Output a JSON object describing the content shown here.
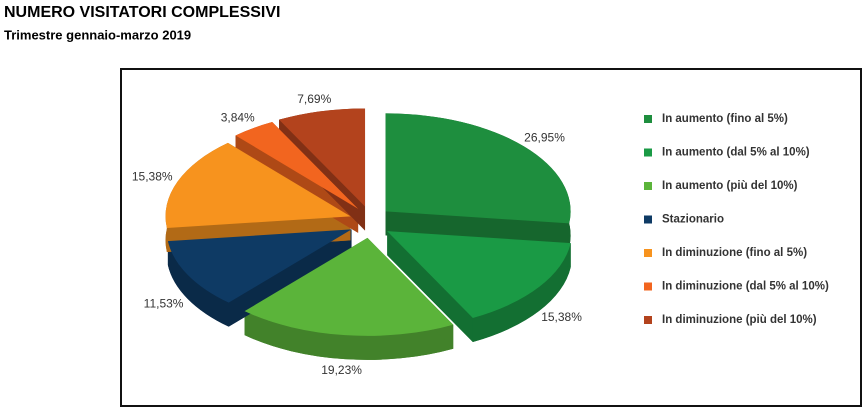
{
  "chart_data": {
    "type": "pie",
    "title": "NUMERO VISITATORI COMPLESSIVI",
    "subtitle": "Trimestre gennaio-marzo 2019",
    "categories": [
      "In aumento (fino al 5%)",
      "In aumento (dal 5% al 10%)",
      "In aumento (più del 10%)",
      "Stazionario",
      "In diminuzione (fino al 5%)",
      "In diminuzione (dal 5% al 10%)",
      "In diminuzione (più del 10%)"
    ],
    "values": [
      26.95,
      15.38,
      19.23,
      11.53,
      15.38,
      3.84,
      7.69
    ],
    "value_labels": [
      "26,95%",
      "15,38%",
      "19,23%",
      "11,53%",
      "15,38%",
      "3,84%",
      "7,69%"
    ],
    "colors": [
      "#1e8e3e",
      "#1a9a45",
      "#5bb43a",
      "#0e3a64",
      "#f7931e",
      "#f2651f",
      "#b3431d"
    ],
    "legend": "right"
  }
}
